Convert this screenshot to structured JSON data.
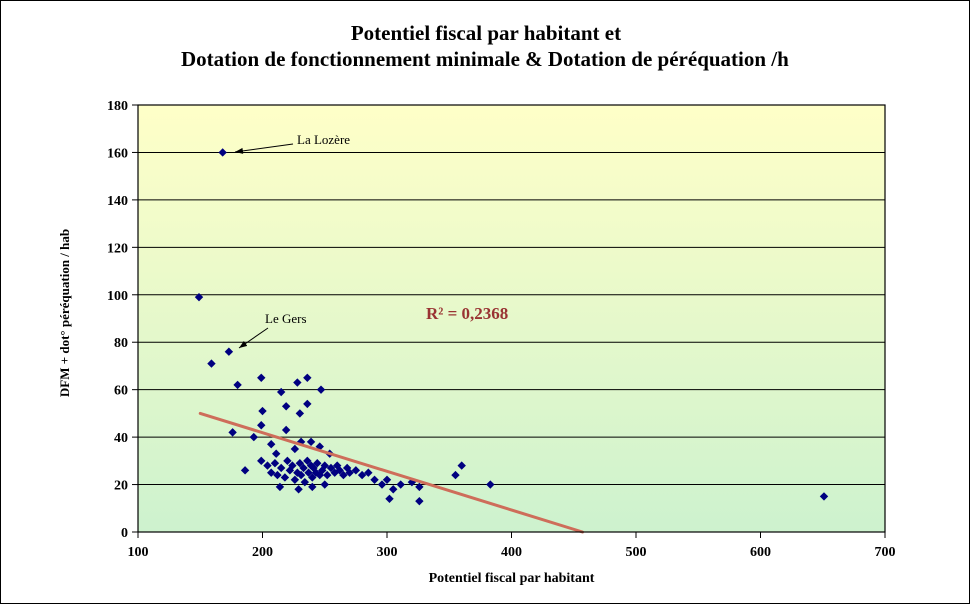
{
  "chart_data": {
    "type": "scatter",
    "title_lines": [
      "Potentiel fiscal par habitant et",
      "Dotation de fonctionnement minimale & Dotation de péréquation /h"
    ],
    "title": "Potentiel fiscal par habitant et Dotation de fonctionnement minimale & Dotation de péréquation /hab",
    "xlabel": "Potentiel fiscal par habitant",
    "ylabel": "DFM + dot° péréquation / hab",
    "r2_label": "R² = 0,2368",
    "xlim": [
      100,
      700
    ],
    "ylim": [
      0,
      180
    ],
    "x_ticks": [
      100,
      200,
      300,
      400,
      500,
      600,
      700
    ],
    "y_ticks": [
      0,
      20,
      40,
      60,
      80,
      100,
      120,
      140,
      160,
      180
    ],
    "grid": "horizontal",
    "legend": "none",
    "points": [
      [
        168,
        160
      ],
      [
        149,
        99
      ],
      [
        173,
        76
      ],
      [
        159,
        71
      ],
      [
        180,
        62
      ],
      [
        199,
        65
      ],
      [
        215,
        59
      ],
      [
        228,
        63
      ],
      [
        236,
        65
      ],
      [
        247,
        60
      ],
      [
        200,
        51
      ],
      [
        219,
        53
      ],
      [
        230,
        50
      ],
      [
        236,
        54
      ],
      [
        199,
        45
      ],
      [
        219,
        43
      ],
      [
        176,
        42
      ],
      [
        193,
        40
      ],
      [
        207,
        37
      ],
      [
        231,
        38
      ],
      [
        239,
        38
      ],
      [
        226,
        35
      ],
      [
        246,
        36
      ],
      [
        211,
        33
      ],
      [
        254,
        33
      ],
      [
        186,
        26
      ],
      [
        199,
        30
      ],
      [
        204,
        28
      ],
      [
        207,
        25
      ],
      [
        210,
        29
      ],
      [
        212,
        24
      ],
      [
        215,
        27
      ],
      [
        218,
        23
      ],
      [
        220,
        30
      ],
      [
        222,
        26
      ],
      [
        224,
        28
      ],
      [
        226,
        22
      ],
      [
        228,
        25
      ],
      [
        230,
        29
      ],
      [
        231,
        24
      ],
      [
        233,
        27
      ],
      [
        234,
        21
      ],
      [
        236,
        30
      ],
      [
        237,
        25
      ],
      [
        239,
        28
      ],
      [
        240,
        23
      ],
      [
        241,
        27
      ],
      [
        243,
        25
      ],
      [
        244,
        29
      ],
      [
        246,
        24
      ],
      [
        248,
        26
      ],
      [
        250,
        28
      ],
      [
        252,
        24
      ],
      [
        255,
        27
      ],
      [
        258,
        25
      ],
      [
        260,
        28
      ],
      [
        262,
        26
      ],
      [
        265,
        24
      ],
      [
        268,
        27
      ],
      [
        270,
        25
      ],
      [
        275,
        26
      ],
      [
        280,
        24
      ],
      [
        285,
        25
      ],
      [
        290,
        22
      ],
      [
        296,
        20
      ],
      [
        300,
        22
      ],
      [
        305,
        18
      ],
      [
        311,
        20
      ],
      [
        320,
        21
      ],
      [
        326,
        19
      ],
      [
        214,
        19
      ],
      [
        229,
        18
      ],
      [
        240,
        19
      ],
      [
        250,
        20
      ],
      [
        302,
        14
      ],
      [
        326,
        13
      ],
      [
        355,
        24
      ],
      [
        360,
        28
      ],
      [
        383,
        20
      ],
      [
        651,
        15
      ]
    ],
    "trendline": {
      "x1": 150,
      "y1": 50,
      "x2": 457,
      "y2": 0
    },
    "annotations": [
      {
        "text": "La Lozère",
        "point": [
          168,
          160
        ]
      },
      {
        "text": "Le Gers",
        "point": [
          173,
          76
        ]
      }
    ],
    "colors": {
      "marker": "#000080",
      "trend": "#CE6D5A",
      "r2_text": "#993333",
      "plot_bg_top": "#FFFFC8",
      "plot_bg_bottom": "#CDF2CE",
      "grid": "#000000"
    }
  }
}
